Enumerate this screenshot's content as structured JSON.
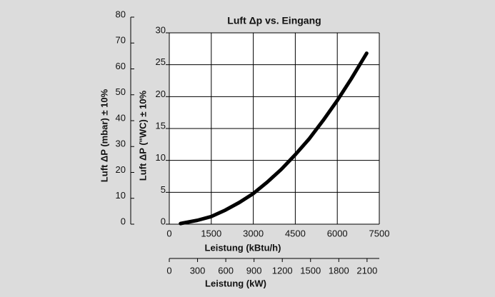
{
  "chart_data": {
    "type": "line",
    "title": "Luft Δp vs. Eingang",
    "xlabel": "Leistung (kBtu/h)",
    "ylabel": "Luft ΔP (\"WC) ± 10%",
    "x2label": "Leistung (kW)",
    "y2label": "Luft ΔP (mbar) ± 10%",
    "x": [
      400,
      1000,
      1500,
      2000,
      2500,
      3000,
      3500,
      4000,
      4500,
      5000,
      5500,
      6000,
      6500,
      7050
    ],
    "series": [
      {
        "color": "#000000",
        "values": [
          0.1,
          0.6,
          1.2,
          2.2,
          3.4,
          4.8,
          6.6,
          8.6,
          10.9,
          13.4,
          16.3,
          19.4,
          22.8,
          26.8
        ]
      }
    ],
    "xlim": [
      0,
      7500
    ],
    "xticks": [
      0,
      1500,
      3000,
      4500,
      6000,
      7500
    ],
    "ylim": [
      0,
      30
    ],
    "yticks": [
      0,
      5,
      10,
      15,
      20,
      25,
      30
    ],
    "x2lim": [
      0,
      2230
    ],
    "x2ticks": [
      0,
      300,
      600,
      900,
      1200,
      1500,
      1800,
      2100
    ],
    "y2lim": [
      0,
      80
    ],
    "y2ticks": [
      0,
      10,
      20,
      30,
      40,
      50,
      60,
      70,
      80
    ],
    "grid": true
  }
}
